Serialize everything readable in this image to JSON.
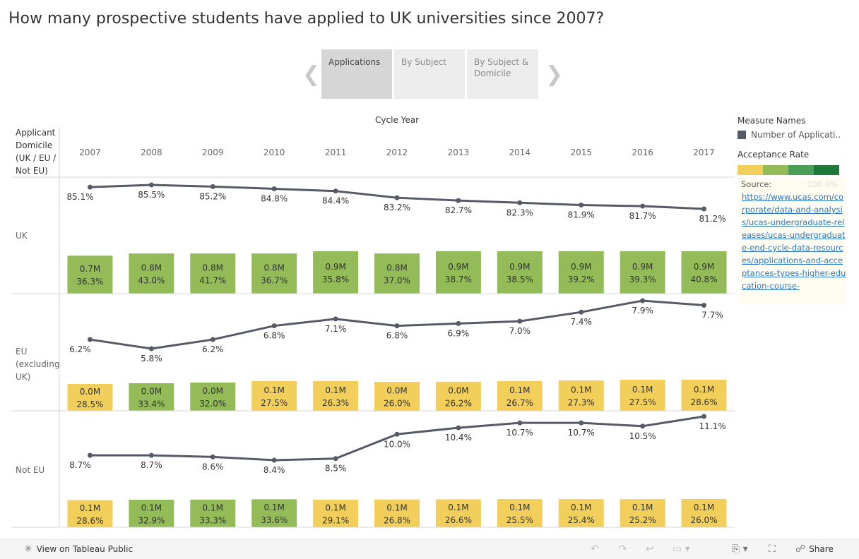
{
  "title": "How many prospective students have applied to UK universities since 2007?",
  "tabs": [
    {
      "label": "Applications",
      "active": true
    },
    {
      "label": "By Subject",
      "active": false
    },
    {
      "label": "By Subject & Domicile",
      "active": false
    }
  ],
  "chart_data": {
    "type": "bar",
    "column_header": "Cycle Year",
    "row_header": "Applicant Domicile (UK / EU / Not EU)",
    "categories": [
      "2007",
      "2008",
      "2009",
      "2010",
      "2011",
      "2012",
      "2013",
      "2014",
      "2015",
      "2016",
      "2017"
    ],
    "panels": [
      {
        "name": "UK",
        "application_share": [
          85.1,
          85.5,
          85.2,
          84.8,
          84.4,
          83.2,
          82.7,
          82.3,
          81.9,
          81.7,
          81.2
        ],
        "application_share_labels": [
          "85.1%",
          "85.5%",
          "85.2%",
          "84.8%",
          "84.4%",
          "83.2%",
          "82.7%",
          "82.3%",
          "81.9%",
          "81.7%",
          "81.2%"
        ],
        "applications": [
          0.7,
          0.8,
          0.8,
          0.8,
          0.9,
          0.8,
          0.9,
          0.9,
          0.9,
          0.9,
          0.9
        ],
        "applications_labels": [
          "0.7M",
          "0.8M",
          "0.8M",
          "0.8M",
          "0.9M",
          "0.8M",
          "0.9M",
          "0.9M",
          "0.9M",
          "0.9M",
          "0.9M"
        ],
        "acceptance_rate": [
          36.3,
          43.0,
          41.7,
          36.7,
          35.8,
          37.0,
          38.7,
          38.5,
          39.2,
          39.3,
          40.8
        ],
        "acceptance_rate_labels": [
          "36.3%",
          "43.0%",
          "41.7%",
          "36.7%",
          "35.8%",
          "37.0%",
          "38.7%",
          "38.5%",
          "39.2%",
          "39.3%",
          "40.8%"
        ]
      },
      {
        "name": "EU (excluding UK)",
        "application_share": [
          6.2,
          5.8,
          6.2,
          6.8,
          7.1,
          6.8,
          6.9,
          7.0,
          7.4,
          7.9,
          7.7
        ],
        "application_share_labels": [
          "6.2%",
          "5.8%",
          "6.2%",
          "6.8%",
          "7.1%",
          "6.8%",
          "6.9%",
          "7.0%",
          "7.4%",
          "7.9%",
          "7.7%"
        ],
        "applications": [
          0.03,
          0.035,
          0.04,
          0.05,
          0.05,
          0.045,
          0.046,
          0.05,
          0.055,
          0.06,
          0.06
        ],
        "applications_labels": [
          "0.0M",
          "0.0M",
          "0.0M",
          "0.1M",
          "0.1M",
          "0.0M",
          "0.0M",
          "0.1M",
          "0.1M",
          "0.1M",
          "0.1M"
        ],
        "acceptance_rate": [
          28.5,
          33.4,
          32.0,
          27.5,
          26.3,
          26.0,
          26.2,
          26.7,
          27.3,
          27.5,
          28.6
        ],
        "acceptance_rate_labels": [
          "28.5%",
          "33.4%",
          "32.0%",
          "27.5%",
          "26.3%",
          "26.0%",
          "26.2%",
          "26.7%",
          "27.3%",
          "27.5%",
          "28.6%"
        ]
      },
      {
        "name": "Not EU",
        "application_share": [
          8.7,
          8.7,
          8.6,
          8.4,
          8.5,
          10.0,
          10.4,
          10.7,
          10.7,
          10.5,
          11.1
        ],
        "application_share_labels": [
          "8.7%",
          "8.7%",
          "8.6%",
          "8.4%",
          "8.5%",
          "10.0%",
          "10.4%",
          "10.7%",
          "10.7%",
          "10.5%",
          "11.1%"
        ],
        "applications": [
          0.055,
          0.06,
          0.062,
          0.066,
          0.06,
          0.063,
          0.065,
          0.068,
          0.068,
          0.068,
          0.069
        ],
        "applications_labels": [
          "0.1M",
          "0.1M",
          "0.1M",
          "0.1M",
          "0.1M",
          "0.1M",
          "0.1M",
          "0.1M",
          "0.1M",
          "0.1M",
          "0.1M"
        ],
        "acceptance_rate": [
          28.6,
          32.9,
          33.3,
          33.6,
          29.1,
          26.8,
          26.6,
          25.5,
          25.4,
          25.2,
          26.0
        ],
        "acceptance_rate_labels": [
          "28.6%",
          "32.9%",
          "33.3%",
          "33.6%",
          "29.1%",
          "26.8%",
          "26.6%",
          "25.5%",
          "25.4%",
          "25.2%",
          "26.0%"
        ]
      }
    ],
    "legend_placement": "right",
    "colors": {
      "line": "#555b66",
      "grid": "#d4d4d4"
    }
  },
  "legend": {
    "measure_names_header": "Measure Names",
    "measure_name": "Number of Applicati...",
    "acceptance_rate_header": "Acceptance Rate",
    "ramp_colors": [
      "#f2cf5b",
      "#93bc59",
      "#4a9e55",
      "#1f7a3a"
    ],
    "ramp_max_label": "100.0%"
  },
  "source": {
    "label": "Source:",
    "url": "https://www.ucas.com/corporate/data-and-analysis/ucas-undergraduate-releases/ucas-undergraduate-end-cycle-data-resources/applications-and-acceptances-types-higher-education-course-"
  },
  "footer": {
    "view_label": "View on Tableau Public",
    "share_label": "Share"
  }
}
